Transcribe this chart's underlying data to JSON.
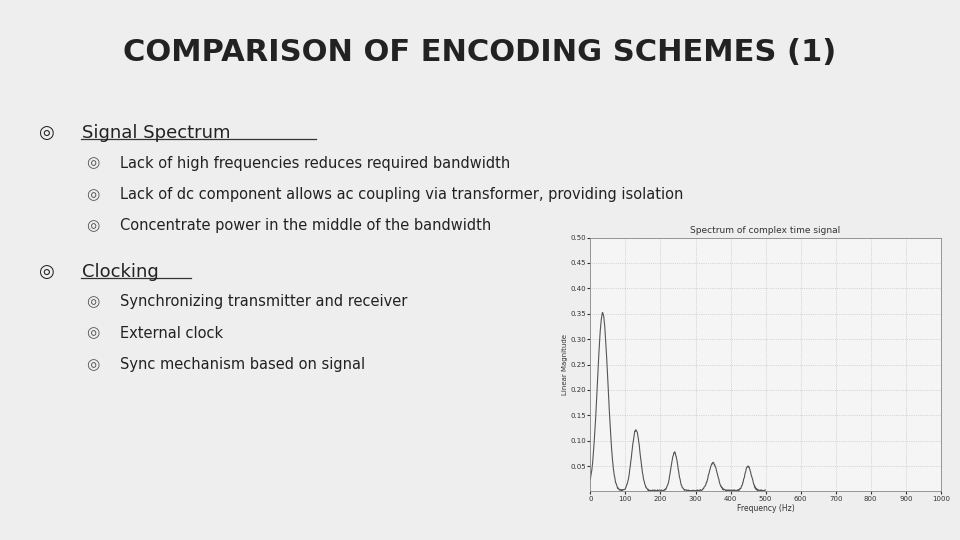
{
  "title": "COMPARISON OF ENCODING SCHEMES (1)",
  "title_fontsize": 22,
  "title_fontweight": "bold",
  "title_color": "#222222",
  "background_color": "#eeeeee",
  "bullet1_header": "Signal Spectrum",
  "bullet1_items": [
    "Lack of high frequencies reduces required bandwidth",
    "Lack of dc component allows ac coupling via transformer, providing isolation",
    "Concentrate power in the middle of the bandwidth"
  ],
  "bullet2_header": "Clocking",
  "bullet2_items": [
    "Synchronizing transmitter and receiver",
    "External clock",
    "Sync mechanism based on signal"
  ],
  "spectrum_title": "Spectrum of complex time signal",
  "spectrum_xlabel": "Frequency (Hz)",
  "spectrum_ylabel": "Linear Magnitude",
  "spectrum_xlim": [
    0,
    1000
  ],
  "spectrum_ylim": [
    0,
    0.5
  ],
  "spectrum_yticks": [
    0.05,
    0.1,
    0.15,
    0.2,
    0.25,
    0.3,
    0.35,
    0.4,
    0.45,
    0.5
  ],
  "spectrum_xticks": [
    0,
    100,
    200,
    300,
    400,
    500,
    600,
    700,
    800,
    900,
    1000
  ],
  "text_color": "#222222",
  "header_color": "#222222",
  "outer_bullet": "◎",
  "inner_bullet": "◎"
}
